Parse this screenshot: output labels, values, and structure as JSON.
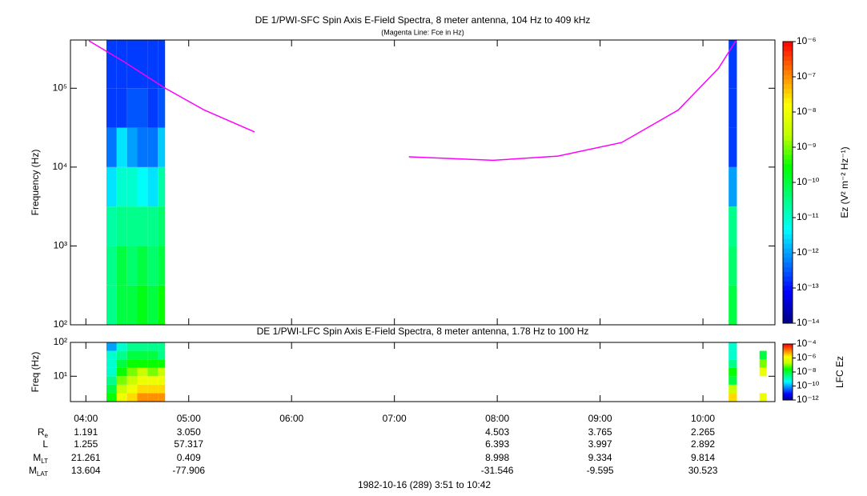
{
  "chart_data": [
    {
      "type": "heatmap",
      "title": "DE 1/PWI-SFC  Spin Axis E-Field Spectra, 8 meter antenna, 104 Hz to 409 kHz",
      "subtitle": "(Magenta Line: Fce in Hz)",
      "ylabel": "Frequency (Hz)",
      "xlim": [
        3.85,
        10.7
      ],
      "ylim": [
        100,
        409000
      ],
      "log_y": true,
      "yticks": [
        {
          "value": 100,
          "label": "10²"
        },
        {
          "value": 1000,
          "label": "10³"
        },
        {
          "value": 10000,
          "label": "10⁴"
        },
        {
          "value": 100000,
          "label": "10⁵"
        }
      ],
      "y_edges": [
        100,
        316,
        1000,
        3162,
        10000,
        31623,
        100000,
        316228,
        409000
      ],
      "blocks": [
        {
          "x_edges": [
            4.2,
            4.3,
            4.4,
            4.5,
            4.6,
            4.7,
            4.77
          ],
          "z": [
            [
              3e-11,
              3e-11,
              2e-11,
              3e-12,
              5e-13,
              2e-13,
              2e-13,
              2e-13
            ],
            [
              1e-10,
              1e-10,
              3e-11,
              1e-11,
              3e-12,
              2e-13,
              2e-13,
              2e-13
            ],
            [
              1e-10,
              5e-11,
              3e-11,
              1e-11,
              1e-12,
              3e-13,
              2e-13,
              2e-13
            ],
            [
              2e-10,
              1e-10,
              3e-11,
              5e-12,
              5e-13,
              3e-13,
              2e-13,
              2e-13
            ],
            [
              1e-10,
              5e-11,
              3e-11,
              3e-12,
              5e-13,
              2e-13,
              2e-13,
              2e-13
            ],
            [
              3e-10,
              1e-10,
              5e-11,
              2e-11,
              2e-12,
              3e-13,
              2e-13,
              2e-13
            ]
          ]
        },
        {
          "x_edges": [
            10.25,
            10.33
          ],
          "z": [
            [
              1e-10,
              5e-11,
              3e-11,
              1e-12,
              2e-13,
              2e-13,
              2e-13,
              2e-13
            ]
          ]
        }
      ],
      "zlim": [
        1e-14,
        1e-06
      ],
      "zticks": [
        {
          "value": 1e-06,
          "label": "10⁻⁶"
        },
        {
          "value": 1e-07,
          "label": "10⁻⁷"
        },
        {
          "value": 1e-08,
          "label": "10⁻⁸"
        },
        {
          "value": 1e-09,
          "label": "10⁻⁹"
        },
        {
          "value": 1e-10,
          "label": "10⁻¹⁰"
        },
        {
          "value": 1e-11,
          "label": "10⁻¹¹"
        },
        {
          "value": 1e-12,
          "label": "10⁻¹²"
        },
        {
          "value": 1e-13,
          "label": "10⁻¹³"
        },
        {
          "value": 1e-14,
          "label": "10⁻¹⁴"
        }
      ],
      "zlabel": "Ez (V² m⁻² Hz⁻¹)",
      "colormap": [
        "#00007f",
        "#0000ff",
        "#0080ff",
        "#00ffff",
        "#00ff80",
        "#00ff00",
        "#c0ff00",
        "#ffff00",
        "#ff8000",
        "#ff0000"
      ],
      "fce": {
        "color": "#ff00ff",
        "x": [
          4.03,
          4.37,
          4.76,
          5.15,
          5.64,
          6.4,
          7.14,
          7.96,
          8.59,
          9.21,
          9.76,
          10.15,
          10.32
        ],
        "values": [
          400000,
          217000,
          102000,
          53000,
          27900,
          null,
          13500,
          12200,
          13800,
          20500,
          53000,
          178000,
          400000
        ]
      }
    },
    {
      "type": "heatmap",
      "title": "DE 1/PWI-LFC  Spin Axis E-Field Spectra, 8 meter antenna, 1.78 Hz to 100 Hz",
      "ylabel": "Freq (Hz)",
      "xlim": [
        3.85,
        10.7
      ],
      "xticks": [
        {
          "value": 4,
          "label": "04:00"
        },
        {
          "value": 5,
          "label": "05:00"
        },
        {
          "value": 6,
          "label": "06:00"
        },
        {
          "value": 7,
          "label": "07:00"
        },
        {
          "value": 8,
          "label": "08:00"
        },
        {
          "value": 9,
          "label": "09:00"
        },
        {
          "value": 10,
          "label": "10:00"
        }
      ],
      "ylim": [
        1.78,
        100
      ],
      "log_y": true,
      "yticks": [
        {
          "value": 10,
          "label": "10¹"
        },
        {
          "value": 100,
          "label": "10²"
        }
      ],
      "y_edges": [
        1.78,
        3.16,
        5.62,
        10,
        17.8,
        31.6,
        56.2,
        100
      ],
      "blocks": [
        {
          "x_edges": [
            4.2,
            4.3,
            4.4,
            4.5,
            4.6,
            4.7,
            4.77
          ],
          "z": [
            [
              3e-08,
              1e-08,
              3e-09,
              1e-09,
              1e-09,
              1e-09,
              1e-10
            ],
            [
              1e-06,
              3e-07,
              1e-07,
              3e-08,
              1e-08,
              3e-09,
              1e-09
            ],
            [
              3e-06,
              1e-06,
              3e-07,
              1e-07,
              3e-08,
              1e-08,
              3e-09
            ],
            [
              1e-05,
              3e-06,
              1e-06,
              3e-07,
              3e-08,
              1e-08,
              3e-09
            ],
            [
              1e-05,
              3e-06,
              1e-06,
              1e-07,
              3e-08,
              1e-08,
              3e-09
            ],
            [
              1e-05,
              3e-06,
              1e-06,
              3e-07,
              3e-08,
              3e-09,
              3e-09
            ]
          ]
        },
        {
          "x_edges": [
            10.25,
            10.33
          ],
          "z": [
            [
              3e-06,
              3e-07,
              1e-08,
              3e-08,
              3e-09,
              1e-09,
              1e-09
            ]
          ]
        },
        {
          "x_edges": [
            10.55,
            10.62
          ],
          "z": [
            [
              1e-06,
              null,
              null,
              1e-06,
              1e-07,
              1e-08,
              null
            ]
          ]
        }
      ],
      "zlim": [
        1e-12,
        0.0001
      ],
      "zticks": [
        {
          "value": 0.0001,
          "label": "10⁻⁴"
        },
        {
          "value": 1e-06,
          "label": "10⁻⁶"
        },
        {
          "value": 1e-08,
          "label": "10⁻⁸"
        },
        {
          "value": 1e-10,
          "label": "10⁻¹⁰"
        },
        {
          "value": 1e-12,
          "label": "10⁻¹²"
        }
      ],
      "zlabel": "LFC Ez",
      "colormap": [
        "#00007f",
        "#0000ff",
        "#0080ff",
        "#00ffff",
        "#00ff80",
        "#00ff00",
        "#c0ff00",
        "#ffff00",
        "#ff8000",
        "#ff0000"
      ]
    }
  ],
  "ephemeris": {
    "times": [
      4,
      5,
      8,
      9,
      10
    ],
    "rows": [
      {
        "main": "R",
        "sub": "e",
        "values": [
          "1.191",
          "3.050",
          "4.503",
          "3.765",
          "2.265"
        ]
      },
      {
        "main": "L",
        "values": [
          "1.255",
          "57.317",
          "6.393",
          "3.997",
          "2.892"
        ]
      },
      {
        "main": "M",
        "sub": "LT",
        "values": [
          "21.261",
          "0.409",
          "8.998",
          "9.334",
          "9.814"
        ]
      },
      {
        "main": "M",
        "sub": "LAT",
        "values": [
          "13.604",
          "-77.906",
          "-31.546",
          "-9.595",
          "30.523"
        ]
      }
    ]
  },
  "footer": "1982-10-16 (289) 3:51 to 10:42"
}
